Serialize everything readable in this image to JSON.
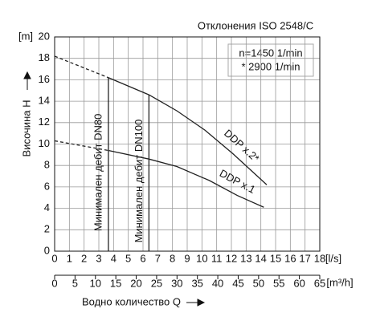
{
  "chart_data": {
    "type": "line",
    "title": "Отклонения ISO 2548/C",
    "legend_lines": [
      "n=1450 1/min",
      "* 2900 1/min"
    ],
    "ylabel": "Височина H",
    "yunit": "[m]",
    "xlabel": "Водно количество Q",
    "xunit": "[l/s]",
    "x2unit": "[m³/h]",
    "xlim": [
      0,
      18
    ],
    "xticks": [
      0,
      1,
      2,
      3,
      4,
      5,
      6,
      7,
      8,
      9,
      10,
      11,
      12,
      13,
      14,
      15,
      16,
      17,
      18
    ],
    "x2lim": [
      0,
      65
    ],
    "x2ticks": [
      0,
      5,
      10,
      15,
      20,
      25,
      30,
      35,
      40,
      45,
      50,
      55,
      60,
      65
    ],
    "ylim": [
      0,
      20
    ],
    "yticks": [
      0,
      2,
      4,
      6,
      8,
      10,
      12,
      14,
      16,
      18,
      20
    ],
    "grid": true,
    "dashed_first_segment": true,
    "series": [
      {
        "name": "DDP x.2*",
        "color": "#222",
        "x": [
          0,
          3.65,
          6.4,
          8.3,
          10.2,
          12.1,
          14.4
        ],
        "values": [
          18.2,
          16.2,
          14.6,
          13.1,
          11.3,
          9.1,
          6.2
        ]
      },
      {
        "name": "DDP x.1",
        "color": "#222",
        "x": [
          0,
          3.65,
          6.4,
          8.3,
          10.5,
          12.4,
          14.2
        ],
        "values": [
          10.3,
          9.4,
          8.6,
          7.9,
          6.6,
          5.2,
          4.1
        ]
      }
    ],
    "annotations": [
      {
        "text": "Минимален дебит DN80",
        "x": 3.65,
        "y": 16.2
      },
      {
        "text": "Минимален дебит DN100",
        "x": 6.4,
        "y": 14.6
      }
    ]
  }
}
